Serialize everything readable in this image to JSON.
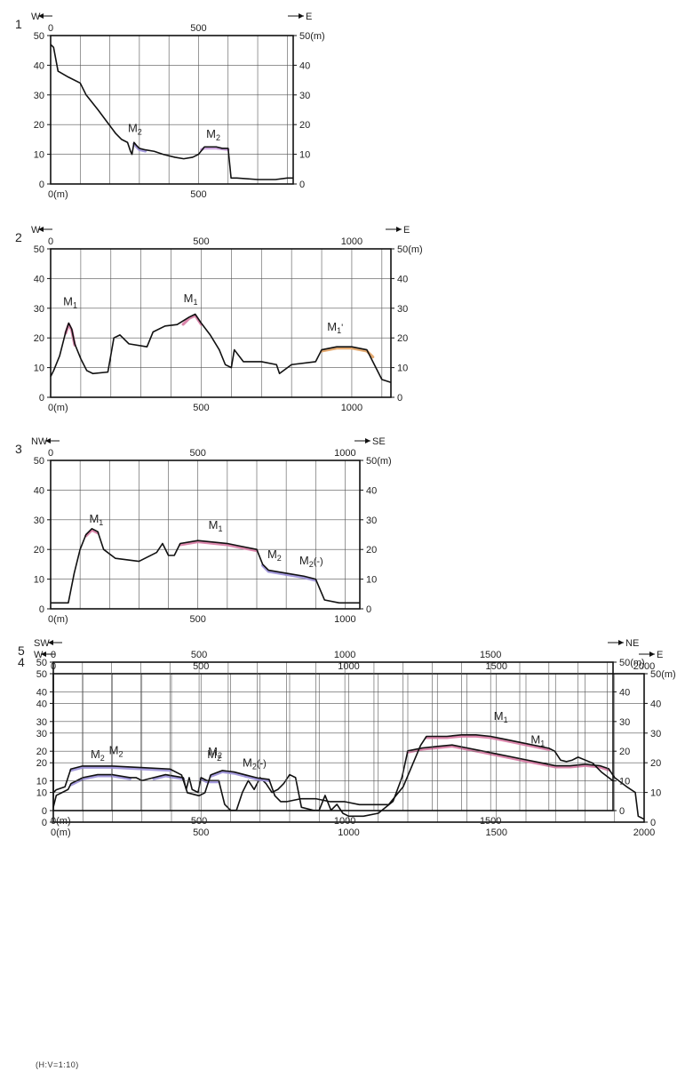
{
  "chart_data": [
    {
      "type": "line",
      "index": "1",
      "dir_left": "W",
      "dir_right": "E",
      "xlim": [
        0,
        820
      ],
      "ylim": [
        0,
        50
      ],
      "top_ticks": [
        {
          "v": 0,
          "t": "0"
        },
        {
          "v": 500,
          "t": "500"
        }
      ],
      "bottom_ticks": [
        {
          "v": 0,
          "t": "0(m)"
        },
        {
          "v": 500,
          "t": "500"
        }
      ],
      "left_ticks": [
        "0",
        "10",
        "20",
        "30",
        "40",
        "50"
      ],
      "right_ticks": [
        "0",
        "10",
        "20",
        "30",
        "40",
        "50(m)"
      ],
      "series": [
        {
          "x": [
            0,
            10,
            25,
            60,
            100,
            120,
            160,
            190,
            220,
            240,
            260,
            270,
            275,
            282,
            290,
            300,
            320,
            350,
            380,
            420,
            450,
            480,
            500,
            520,
            560,
            580,
            600,
            610,
            630,
            700,
            760,
            800,
            820
          ],
          "y": [
            47,
            46,
            38,
            36,
            34,
            30,
            25,
            21,
            17,
            15,
            14,
            11,
            10,
            14,
            13,
            12,
            11.5,
            11,
            10,
            9,
            8.5,
            9,
            10,
            12.5,
            12.5,
            12,
            12,
            2,
            2,
            1.5,
            1.5,
            2,
            2
          ]
        }
      ],
      "highlights": [
        {
          "x": [
            282,
            290,
            300,
            320
          ],
          "y": [
            14,
            13,
            12,
            11.5
          ],
          "color": "#9a8fd8"
        },
        {
          "x": [
            510,
            520,
            560,
            600
          ],
          "y": [
            12,
            12.5,
            12.5,
            12
          ],
          "color": "#c59ad8"
        }
      ],
      "labels": [
        {
          "x": 285,
          "y": 17.5,
          "t": "M",
          "s": "2"
        },
        {
          "x": 550,
          "y": 15.5,
          "t": "M",
          "s": "2"
        }
      ]
    },
    {
      "type": "line",
      "index": "2",
      "dir_left": "W",
      "dir_right": "E",
      "xlim": [
        0,
        1130
      ],
      "ylim": [
        0,
        50
      ],
      "top_ticks": [
        {
          "v": 0,
          "t": "0"
        },
        {
          "v": 500,
          "t": "500"
        },
        {
          "v": 1000,
          "t": "1000"
        }
      ],
      "bottom_ticks": [
        {
          "v": 0,
          "t": "0(m)"
        },
        {
          "v": 500,
          "t": "500"
        },
        {
          "v": 1000,
          "t": "1000"
        }
      ],
      "left_ticks": [
        "0",
        "10",
        "20",
        "30",
        "40",
        "50"
      ],
      "right_ticks": [
        "0",
        "10",
        "20",
        "30",
        "40",
        "50(m)"
      ],
      "series": [
        {
          "x": [
            0,
            10,
            30,
            50,
            60,
            70,
            80,
            100,
            120,
            140,
            190,
            210,
            230,
            260,
            320,
            340,
            380,
            420,
            460,
            480,
            500,
            530,
            560,
            580,
            600,
            610,
            640,
            700,
            750,
            760,
            800,
            880,
            900,
            950,
            1000,
            1050,
            1080,
            1100,
            1130
          ],
          "y": [
            7,
            9,
            14,
            22,
            25,
            23,
            18,
            13,
            9,
            8,
            8.5,
            20,
            21,
            18,
            17,
            22,
            24,
            24.5,
            27,
            28,
            25,
            21,
            16,
            11,
            10,
            16,
            12,
            12,
            11,
            8,
            11,
            12,
            16,
            17,
            17,
            16,
            10,
            6,
            5
          ]
        }
      ],
      "highlights": [
        {
          "x": [
            50,
            60,
            70,
            80
          ],
          "y": [
            22,
            25,
            23,
            18
          ],
          "color": "#d77aa3"
        },
        {
          "x": [
            440,
            460,
            480,
            500
          ],
          "y": [
            25,
            27,
            28,
            25
          ],
          "color": "#d77aa3"
        },
        {
          "x": [
            900,
            950,
            1000,
            1050,
            1070
          ],
          "y": [
            16,
            17,
            17,
            16,
            14
          ],
          "color": "#e0a060"
        }
      ],
      "labels": [
        {
          "x": 65,
          "y": 31,
          "t": "M",
          "s": "1"
        },
        {
          "x": 465,
          "y": 32,
          "t": "M",
          "s": "1"
        },
        {
          "x": 945,
          "y": 22.5,
          "t": "M",
          "s": "1",
          "p": "'"
        }
      ]
    },
    {
      "type": "line",
      "index": "3",
      "dir_left": "NW",
      "dir_right": "SE",
      "xlim": [
        0,
        1050
      ],
      "ylim": [
        0,
        50
      ],
      "top_ticks": [
        {
          "v": 0,
          "t": "0"
        },
        {
          "v": 500,
          "t": "500"
        },
        {
          "v": 1000,
          "t": "1000"
        }
      ],
      "bottom_ticks": [
        {
          "v": 0,
          "t": "0(m)"
        },
        {
          "v": 500,
          "t": "500"
        },
        {
          "v": 1000,
          "t": "1000"
        }
      ],
      "left_ticks": [
        "0",
        "10",
        "20",
        "30",
        "40",
        "50"
      ],
      "right_ticks": [
        "0",
        "10",
        "20",
        "30",
        "40",
        "50(m)"
      ],
      "series": [
        {
          "x": [
            0,
            60,
            80,
            100,
            120,
            140,
            160,
            180,
            220,
            300,
            360,
            380,
            400,
            420,
            440,
            500,
            600,
            650,
            700,
            720,
            740,
            800,
            860,
            900,
            930,
            980,
            1050
          ],
          "y": [
            2,
            2,
            12,
            20,
            25,
            27,
            26,
            20,
            17,
            16,
            19,
            22,
            18,
            18,
            22,
            23,
            22,
            21,
            20,
            15,
            13,
            12,
            11,
            10,
            3,
            2,
            2
          ]
        }
      ],
      "highlights": [
        {
          "x": [
            120,
            140,
            160
          ],
          "y": [
            25,
            27,
            26
          ],
          "color": "#d77aa3"
        },
        {
          "x": [
            440,
            500,
            600,
            650,
            700
          ],
          "y": [
            22,
            23,
            22,
            21,
            20
          ],
          "color": "#d77aa3"
        },
        {
          "x": [
            720,
            740,
            800
          ],
          "y": [
            15,
            13,
            12
          ],
          "color": "#9a8fd8"
        },
        {
          "x": [
            800,
            860,
            900
          ],
          "y": [
            12,
            11,
            10
          ],
          "color": "#9a8fd8"
        }
      ],
      "labels": [
        {
          "x": 155,
          "y": 29,
          "t": "M",
          "s": "1"
        },
        {
          "x": 560,
          "y": 27,
          "t": "M",
          "s": "1"
        },
        {
          "x": 760,
          "y": 17,
          "t": "M",
          "s": "2"
        },
        {
          "x": 885,
          "y": 15,
          "t": "M",
          "s": "2",
          "p": "(-)"
        }
      ]
    },
    {
      "type": "line",
      "index": "4",
      "dir_left": "W",
      "dir_right": "E",
      "xlim": [
        0,
        2000
      ],
      "ylim": [
        0,
        50
      ],
      "top_ticks": [
        {
          "v": 0,
          "t": "0"
        },
        {
          "v": 500,
          "t": "500"
        },
        {
          "v": 1000,
          "t": "1000"
        },
        {
          "v": 1500,
          "t": "1500"
        },
        {
          "v": 2000,
          "t": "2000"
        }
      ],
      "bottom_ticks": [
        {
          "v": 0,
          "t": "0(m)"
        },
        {
          "v": 500,
          "t": "500"
        },
        {
          "v": 1000,
          "t": "1000"
        },
        {
          "v": 1500,
          "t": "1500"
        },
        {
          "v": 2000,
          "t": "2000"
        }
      ],
      "left_ticks": [
        "0",
        "10",
        "20",
        "30",
        "40",
        "50"
      ],
      "right_ticks": [
        "0",
        "10",
        "20",
        "30",
        "40",
        "50(m)"
      ],
      "series": [
        {
          "x": [
            0,
            10,
            30,
            50,
            60,
            100,
            150,
            200,
            260,
            280,
            300,
            340,
            380,
            440,
            450,
            460,
            470,
            490,
            500,
            520,
            560,
            580,
            600,
            620,
            640,
            660,
            680,
            700,
            720,
            740,
            760,
            780,
            800,
            820,
            840,
            880,
            900,
            920,
            940,
            960,
            980,
            1000,
            1050,
            1100,
            1150,
            1180,
            1200,
            1250,
            1300,
            1350,
            1400,
            1450,
            1500,
            1550,
            1600,
            1650,
            1700,
            1750,
            1800,
            1850,
            1880,
            1900,
            1940,
            1970,
            1980,
            2000
          ],
          "y": [
            5,
            9,
            10,
            11,
            13,
            15,
            16,
            16,
            15,
            15,
            14,
            15,
            16,
            15,
            11,
            15,
            11,
            10,
            15,
            14,
            14,
            6,
            4,
            4,
            10,
            14,
            11,
            15,
            13,
            10,
            11,
            13,
            16,
            15,
            5,
            4,
            4,
            9,
            4,
            6,
            3,
            2,
            2,
            3,
            7,
            15,
            24,
            25,
            25.5,
            26,
            25,
            24,
            23,
            22,
            21,
            20,
            19,
            19,
            19.5,
            19,
            18,
            15,
            12,
            10,
            2,
            1
          ]
        }
      ],
      "highlights": [
        {
          "x": [
            60,
            100,
            150,
            200,
            260
          ],
          "y": [
            13,
            15,
            16,
            16,
            15
          ],
          "color": "#9a8fd8"
        },
        {
          "x": [
            340,
            380,
            440
          ],
          "y": [
            15,
            16,
            15
          ],
          "color": "#9a8fd8"
        },
        {
          "x": [
            500,
            520,
            560
          ],
          "y": [
            15,
            14,
            14
          ],
          "color": "#9a8fd8"
        },
        {
          "x": [
            1200,
            1250,
            1300,
            1350,
            1400,
            1450,
            1500,
            1550,
            1600,
            1650,
            1700,
            1750,
            1800,
            1850,
            1880
          ],
          "y": [
            24,
            25,
            25.5,
            26,
            25,
            24,
            23,
            22,
            21,
            20,
            19,
            19,
            19.5,
            19,
            18
          ],
          "color": "#d77aa3"
        }
      ],
      "labels": [
        {
          "x": 150,
          "y": 21.5,
          "t": "M",
          "s": "2"
        },
        {
          "x": 545,
          "y": 21.5,
          "t": "M",
          "s": "2"
        },
        {
          "x": 1640,
          "y": 26.5,
          "t": "M",
          "s": "1"
        }
      ]
    },
    {
      "type": "line",
      "index": "5",
      "dir_left": "SW",
      "dir_right": "NE",
      "xlim": [
        0,
        1920
      ],
      "ylim": [
        0,
        50
      ],
      "top_ticks": [
        {
          "v": 0,
          "t": "0"
        },
        {
          "v": 500,
          "t": "500"
        },
        {
          "v": 1000,
          "t": "1000"
        },
        {
          "v": 1500,
          "t": "1500"
        }
      ],
      "bottom_ticks": [
        {
          "v": 0,
          "t": "0(m)"
        },
        {
          "v": 500,
          "t": "500"
        },
        {
          "v": 1000,
          "t": "1000"
        },
        {
          "v": 1500,
          "t": "1500"
        }
      ],
      "left_ticks": [
        "0",
        "10",
        "20",
        "30",
        "40",
        "50"
      ],
      "right_ticks": [
        "0",
        "10",
        "20",
        "30",
        "40",
        "50(m)"
      ],
      "series": [
        {
          "x": [
            0,
            10,
            40,
            60,
            100,
            200,
            300,
            400,
            440,
            460,
            500,
            520,
            540,
            580,
            620,
            660,
            700,
            740,
            760,
            780,
            800,
            850,
            900,
            950,
            1000,
            1050,
            1100,
            1150,
            1200,
            1260,
            1280,
            1350,
            1400,
            1450,
            1500,
            1550,
            1600,
            1650,
            1700,
            1720,
            1740,
            1760,
            1780,
            1800,
            1850,
            1880,
            1920
          ],
          "y": [
            6,
            7,
            8,
            14,
            15,
            15,
            14.5,
            14,
            12,
            6,
            5,
            6,
            12,
            13.5,
            13,
            12,
            11,
            10.5,
            5,
            3,
            3,
            4,
            4,
            3,
            3,
            2,
            2,
            2,
            8,
            22,
            25,
            25,
            25.5,
            25.5,
            25,
            24,
            23,
            22,
            21,
            20,
            17,
            16.5,
            17,
            18,
            16,
            13,
            10
          ]
        }
      ],
      "highlights": [
        {
          "x": [
            60,
            100,
            200,
            300,
            400
          ],
          "y": [
            14,
            15,
            15,
            14.5,
            14
          ],
          "color": "#9a8fd8"
        },
        {
          "x": [
            540,
            580,
            620,
            660
          ],
          "y": [
            12,
            13.5,
            13,
            12
          ],
          "color": "#9a8fd8"
        },
        {
          "x": [
            660,
            700,
            740
          ],
          "y": [
            12,
            11,
            10.5
          ],
          "color": "#9a8fd8"
        },
        {
          "x": [
            1280,
            1350,
            1400,
            1450,
            1500,
            1550,
            1600,
            1650,
            1700
          ],
          "y": [
            25,
            25,
            25.5,
            25.5,
            25,
            24,
            23,
            22,
            21
          ],
          "color": "#d77aa3"
        }
      ],
      "labels": [
        {
          "x": 215,
          "y": 19,
          "t": "M",
          "s": "2"
        },
        {
          "x": 555,
          "y": 18.5,
          "t": "M",
          "s": "2"
        },
        {
          "x": 690,
          "y": 14.8,
          "t": "M",
          "s": "2",
          "p": "(-)"
        },
        {
          "x": 1535,
          "y": 30.5,
          "t": "M",
          "s": "1"
        }
      ]
    }
  ],
  "scale_note": "(H:V=1:10)"
}
